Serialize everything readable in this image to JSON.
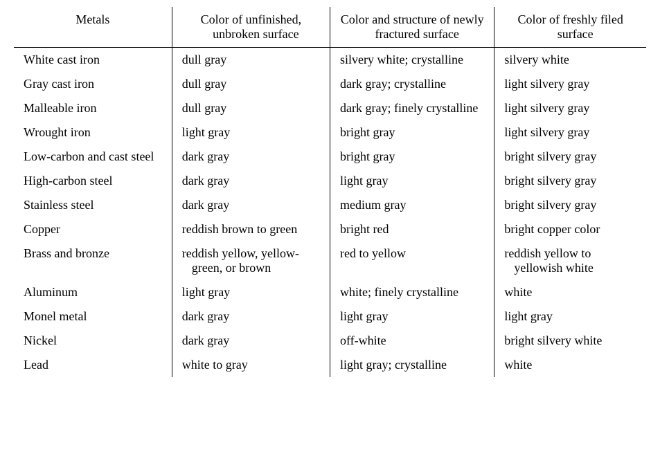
{
  "table": {
    "columns": [
      "Metals",
      "Color of unfinished, unbroken surface",
      "Color and structure of newly fractured surface",
      "Color of freshly filed surface"
    ],
    "rows": [
      [
        "White cast iron",
        "dull gray",
        "silvery white;  crystalline",
        "silvery white"
      ],
      [
        "Gray cast iron",
        "dull gray",
        "dark gray; crystalline",
        "light silvery gray"
      ],
      [
        "Malleable iron",
        "dull gray",
        "dark gray; finely crystalline",
        "light silvery gray"
      ],
      [
        "Wrought iron",
        "light gray",
        "bright gray",
        "light silvery gray"
      ],
      [
        "Low-carbon and cast steel",
        "dark gray",
        "bright gray",
        "bright silvery gray"
      ],
      [
        "High-carbon steel",
        "dark gray",
        "light gray",
        "bright silvery gray"
      ],
      [
        "Stainless steel",
        "dark gray",
        "medium gray",
        "bright silvery gray"
      ],
      [
        "Copper",
        "reddish brown to green",
        "bright red",
        "bright copper color"
      ],
      [
        "Brass and bronze",
        "reddish yellow, yellow-green, or brown",
        "red to yellow",
        "reddish yellow to yellowish white"
      ],
      [
        "Aluminum",
        "light gray",
        "white; finely crystalline",
        "white"
      ],
      [
        "Monel metal",
        "dark gray",
        "light gray",
        "light gray"
      ],
      [
        "Nickel",
        "dark gray",
        "off-white",
        "bright silvery white"
      ],
      [
        "Lead",
        "white to gray",
        "light gray; crystalline",
        "white"
      ]
    ],
    "text_color": "#000000",
    "border_color": "#000000",
    "background_color": "#ffffff",
    "font_family": "Times New Roman",
    "font_size_pt": 13,
    "header_align": "center",
    "body_align": "left"
  }
}
